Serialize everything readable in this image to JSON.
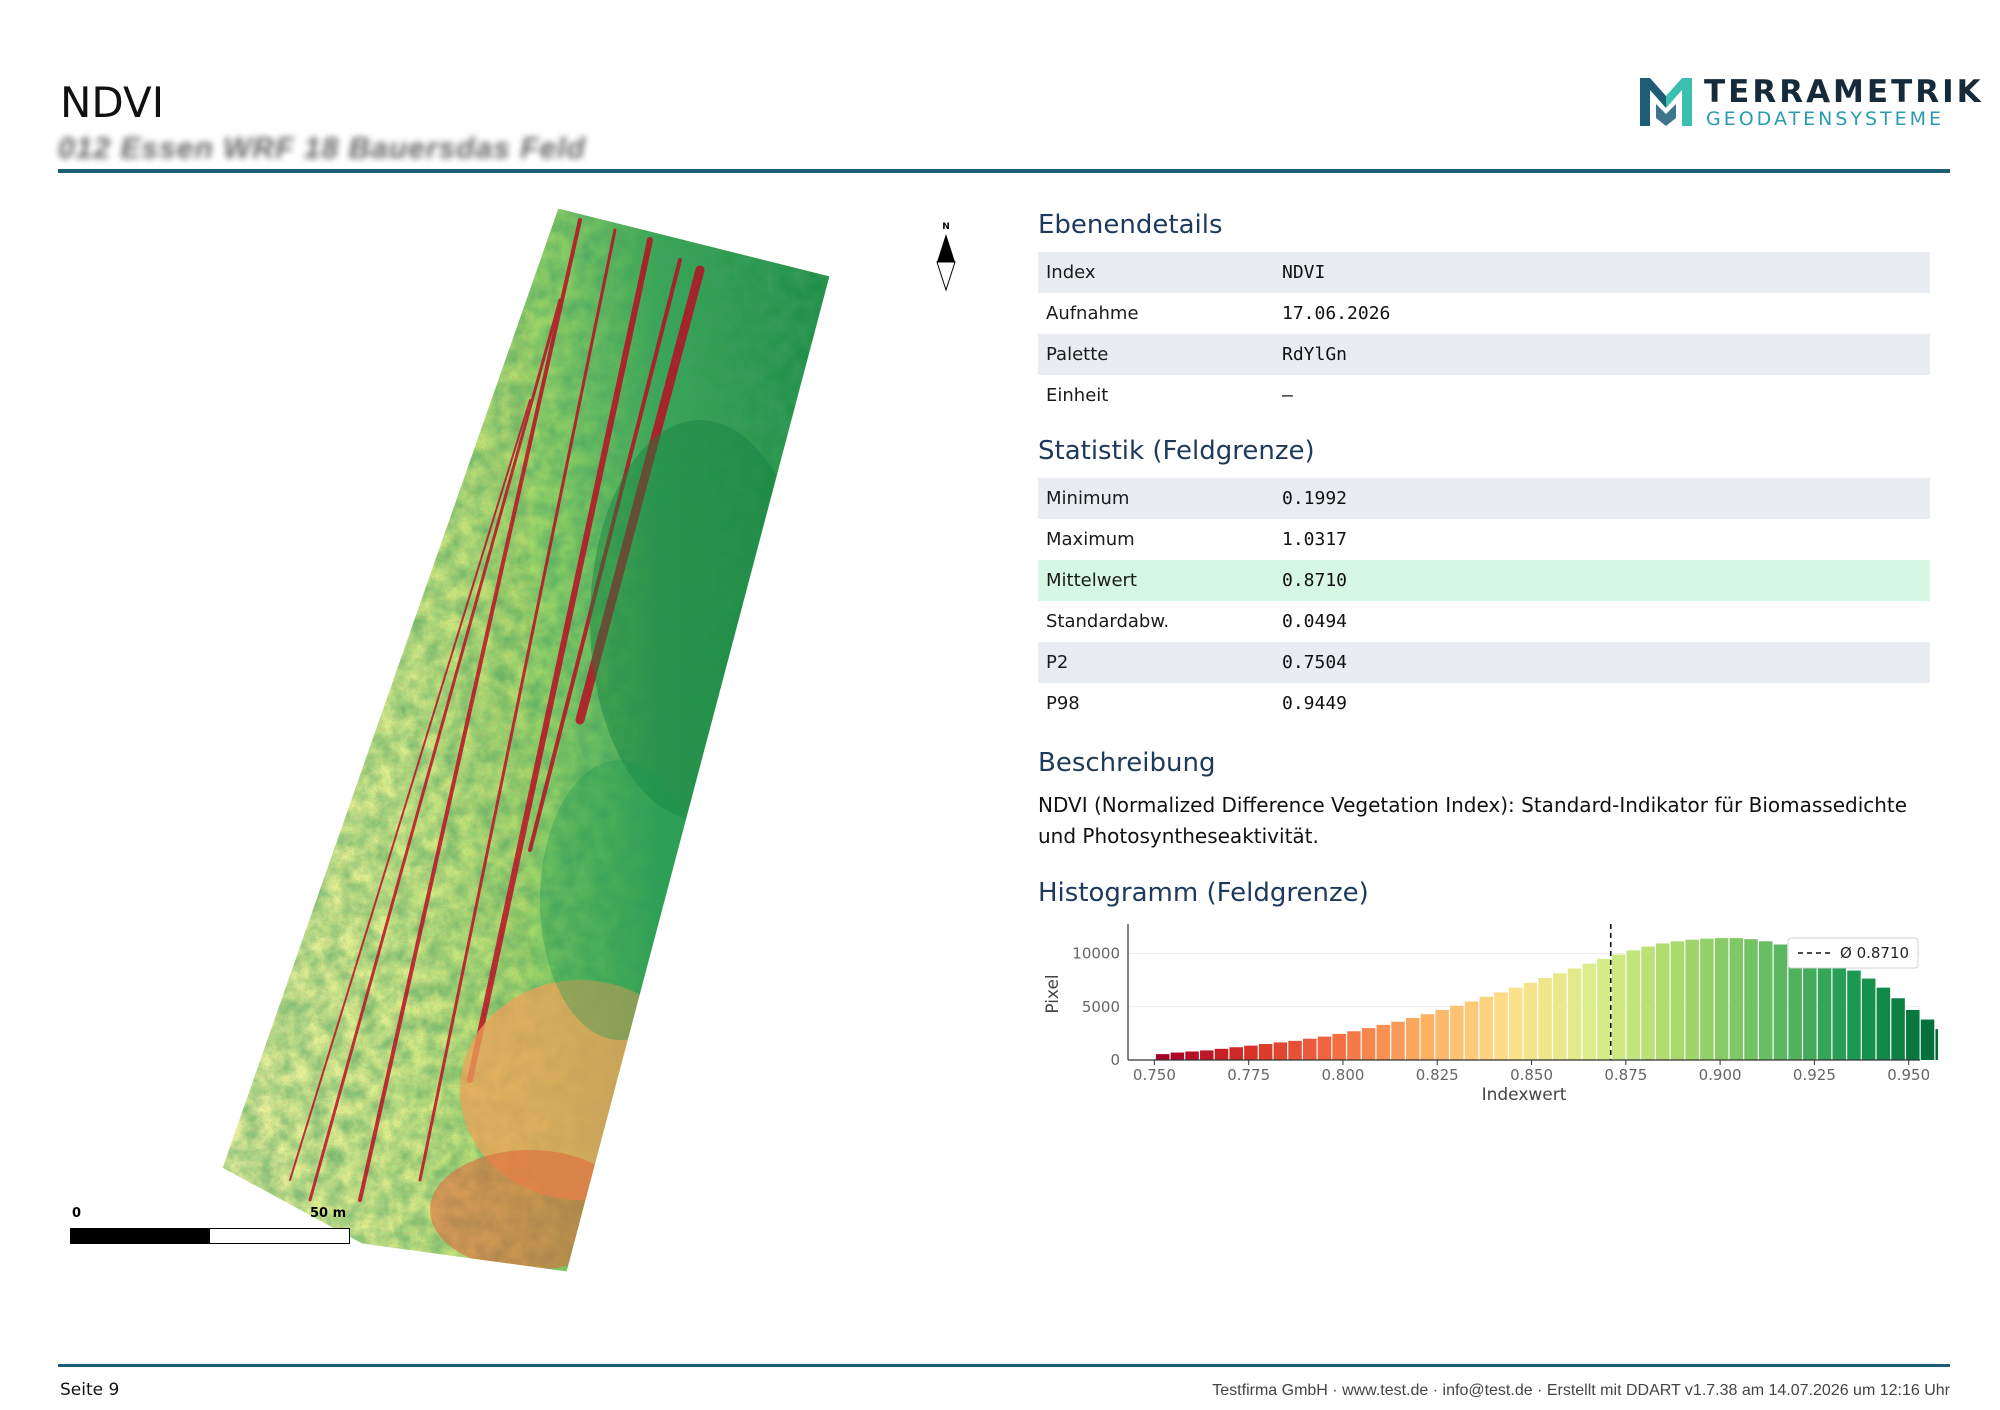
{
  "header": {
    "title": "NDVI",
    "subtitle": "012 Essen WRF 18 Bauersdas Feld",
    "logo": {
      "top": "TERRAMETRIK",
      "bottom": "GEODATENSYSTEME",
      "mark_colors": [
        "#1d5d78",
        "#3bbfae"
      ]
    }
  },
  "map": {
    "north_label": "N",
    "scale": {
      "start": "0",
      "end": "50 m"
    },
    "palette": [
      "#a50026",
      "#d73027",
      "#f46d43",
      "#fdae61",
      "#fee08b",
      "#d9ef8b",
      "#a6d96a",
      "#66bd63",
      "#1a9850",
      "#006837"
    ]
  },
  "layer_details": {
    "heading": "Ebenendetails",
    "rows": [
      {
        "key": "Index",
        "value": "NDVI"
      },
      {
        "key": "Aufnahme",
        "value": "17.06.2026"
      },
      {
        "key": "Palette",
        "value": "RdYlGn"
      },
      {
        "key": "Einheit",
        "value": "–"
      }
    ]
  },
  "statistics": {
    "heading": "Statistik (Feldgrenze)",
    "rows": [
      {
        "key": "Minimum",
        "value": "0.1992"
      },
      {
        "key": "Maximum",
        "value": "1.0317"
      },
      {
        "key": "Mittelwert",
        "value": "0.8710"
      },
      {
        "key": "Standardabw.",
        "value": "0.0494"
      },
      {
        "key": "P2",
        "value": "0.7504"
      },
      {
        "key": "P98",
        "value": "0.9449"
      }
    ]
  },
  "description": {
    "heading": "Beschreibung",
    "text": "NDVI (Normalized Difference Vegetation Index): Standard-Indikator für Biomassedichte und Photosyntheseaktivität."
  },
  "histogram_heading": "Histogramm (Feldgrenze)",
  "chart_data": {
    "type": "bar",
    "title": "",
    "xlabel": "Indexwert",
    "ylabel": "Pixel",
    "xlim": [
      0.743,
      0.953
    ],
    "ylim": [
      0,
      12400
    ],
    "x_ticks": [
      "0.750",
      "0.775",
      "0.800",
      "0.825",
      "0.850",
      "0.875",
      "0.900",
      "0.925",
      "0.950"
    ],
    "x_tick_values": [
      0.75,
      0.775,
      0.8,
      0.825,
      0.85,
      0.875,
      0.9,
      0.925,
      0.95
    ],
    "y_ticks": [
      "0",
      "5000",
      "10000"
    ],
    "y_tick_values": [
      0,
      5000,
      10000
    ],
    "bin_start": 0.7504,
    "bin_width": 0.0039,
    "values": [
      550,
      700,
      800,
      900,
      1050,
      1200,
      1350,
      1500,
      1650,
      1800,
      2000,
      2200,
      2450,
      2700,
      3000,
      3300,
      3600,
      3950,
      4300,
      4700,
      5100,
      5500,
      5950,
      6350,
      6800,
      7250,
      7700,
      8150,
      8600,
      9050,
      9500,
      9900,
      10300,
      10650,
      10950,
      11150,
      11300,
      11400,
      11450,
      11450,
      11350,
      11150,
      10850,
      10500,
      10100,
      9600,
      9050,
      8400,
      7650,
      6800,
      5800,
      4700,
      3800,
      2900
    ],
    "mean_line": {
      "x": 0.871,
      "label": "Ø 0.8710"
    },
    "legend": "top-right",
    "grid": true
  },
  "footer": {
    "page": "Seite 9",
    "credits": "Testfirma GmbH · www.test.de · info@test.de · Erstellt mit DDART v1.7.38 am 14.07.2026 um 12:16 Uhr"
  }
}
